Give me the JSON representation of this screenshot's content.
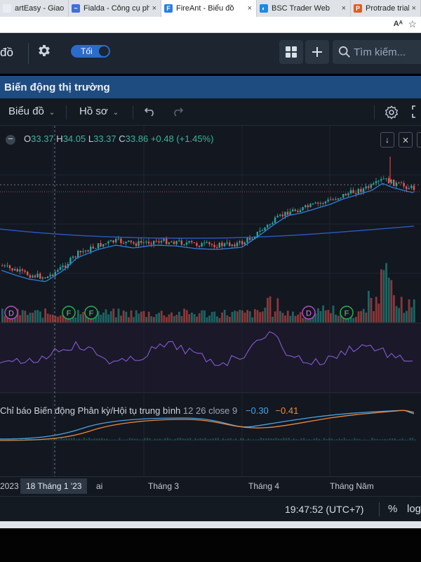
{
  "browser": {
    "tabs": [
      {
        "label": "artEasy - Giao dịch phái",
        "color": "#e9eef4",
        "fav": "",
        "width": 98
      },
      {
        "label": "Fialda - Công cụ phân tích",
        "color": "#3f6fd8",
        "fav": "~",
        "width": 132
      },
      {
        "label": "FireAnt - Biểu đồ",
        "color": "#2b7de9",
        "fav": "F",
        "width": 136,
        "active": true
      },
      {
        "label": "BSC Trader Web",
        "color": "#1e88e5",
        "fav": "◐",
        "width": 134
      },
      {
        "label": "Protrade trial",
        "color": "#e35a1d",
        "fav": "P",
        "width": 100
      }
    ]
  },
  "app": {
    "partial_title": "đồ",
    "theme_toggle_label": "Tối",
    "search_placeholder": "Tìm kiếm..."
  },
  "panel": {
    "title": "Biến động thị trường"
  },
  "toolbar": {
    "chart_menu": "Biểu đồ",
    "profile_menu": "Hồ sơ"
  },
  "ohlc": {
    "o_label": "O",
    "o": "33.37",
    "h_label": "H",
    "h": "34.05",
    "l_label": "L",
    "l": "33.37",
    "c_label": "C",
    "c": "33.86",
    "change": "+0.48 (+1.45%)"
  },
  "macd": {
    "title": "Chỉ báo Biến động Phân kỳ/Hội tụ trung bình",
    "params": "12 26 close 9",
    "value1": "−0.30",
    "value2": "−0.41"
  },
  "events": [
    "D",
    "F",
    "F",
    "D",
    "F"
  ],
  "xaxis": {
    "year": "2023",
    "selected": "18 Tháng 1 '23",
    "partial": "ai",
    "month3": "Tháng 3",
    "month4": "Tháng 4",
    "month5": "Tháng Năm"
  },
  "status": {
    "time": "19:47:52 (UTC+7)",
    "pct": "%",
    "log": "log"
  },
  "colors": {
    "up": "#26a69a",
    "down": "#ef5350",
    "ma_fast": "#2f7fe0",
    "ma_slow": "#2a55b8",
    "rsi": "#7e57c2",
    "macd": "#4aa3e6",
    "signal": "#ee8a3a"
  }
}
